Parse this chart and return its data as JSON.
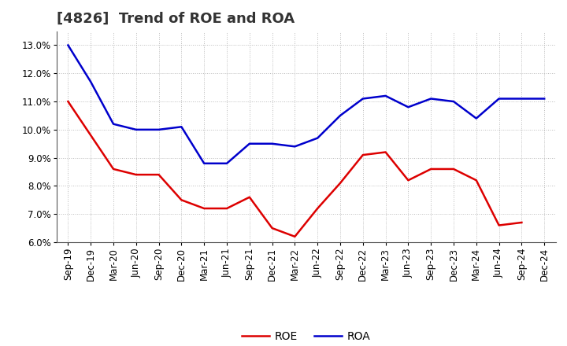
{
  "title": "[4826]  Trend of ROE and ROA",
  "x_labels": [
    "Sep-19",
    "Dec-19",
    "Mar-20",
    "Jun-20",
    "Sep-20",
    "Dec-20",
    "Mar-21",
    "Jun-21",
    "Sep-21",
    "Dec-21",
    "Mar-22",
    "Jun-22",
    "Sep-22",
    "Dec-22",
    "Mar-23",
    "Jun-23",
    "Sep-23",
    "Dec-23",
    "Mar-24",
    "Jun-24",
    "Sep-24",
    "Dec-24"
  ],
  "roe": [
    11.0,
    9.8,
    8.6,
    8.4,
    8.4,
    7.5,
    7.2,
    7.2,
    7.6,
    6.5,
    6.2,
    7.2,
    8.1,
    9.1,
    9.2,
    8.2,
    8.6,
    8.6,
    8.2,
    6.6,
    6.7,
    null
  ],
  "roa": [
    13.0,
    11.7,
    10.2,
    10.0,
    10.0,
    10.1,
    8.8,
    8.8,
    9.5,
    9.5,
    9.4,
    9.7,
    10.5,
    11.1,
    11.2,
    10.8,
    11.1,
    11.0,
    10.4,
    11.1,
    11.1,
    11.1
  ],
  "ylim": [
    6.0,
    13.5
  ],
  "yticks": [
    6.0,
    7.0,
    8.0,
    9.0,
    10.0,
    11.0,
    12.0,
    13.0
  ],
  "roe_color": "#dd0000",
  "roa_color": "#0000cc",
  "background_color": "#ffffff",
  "grid_color": "#bbbbbb",
  "title_fontsize": 13,
  "axis_fontsize": 8.5,
  "legend_fontsize": 10
}
